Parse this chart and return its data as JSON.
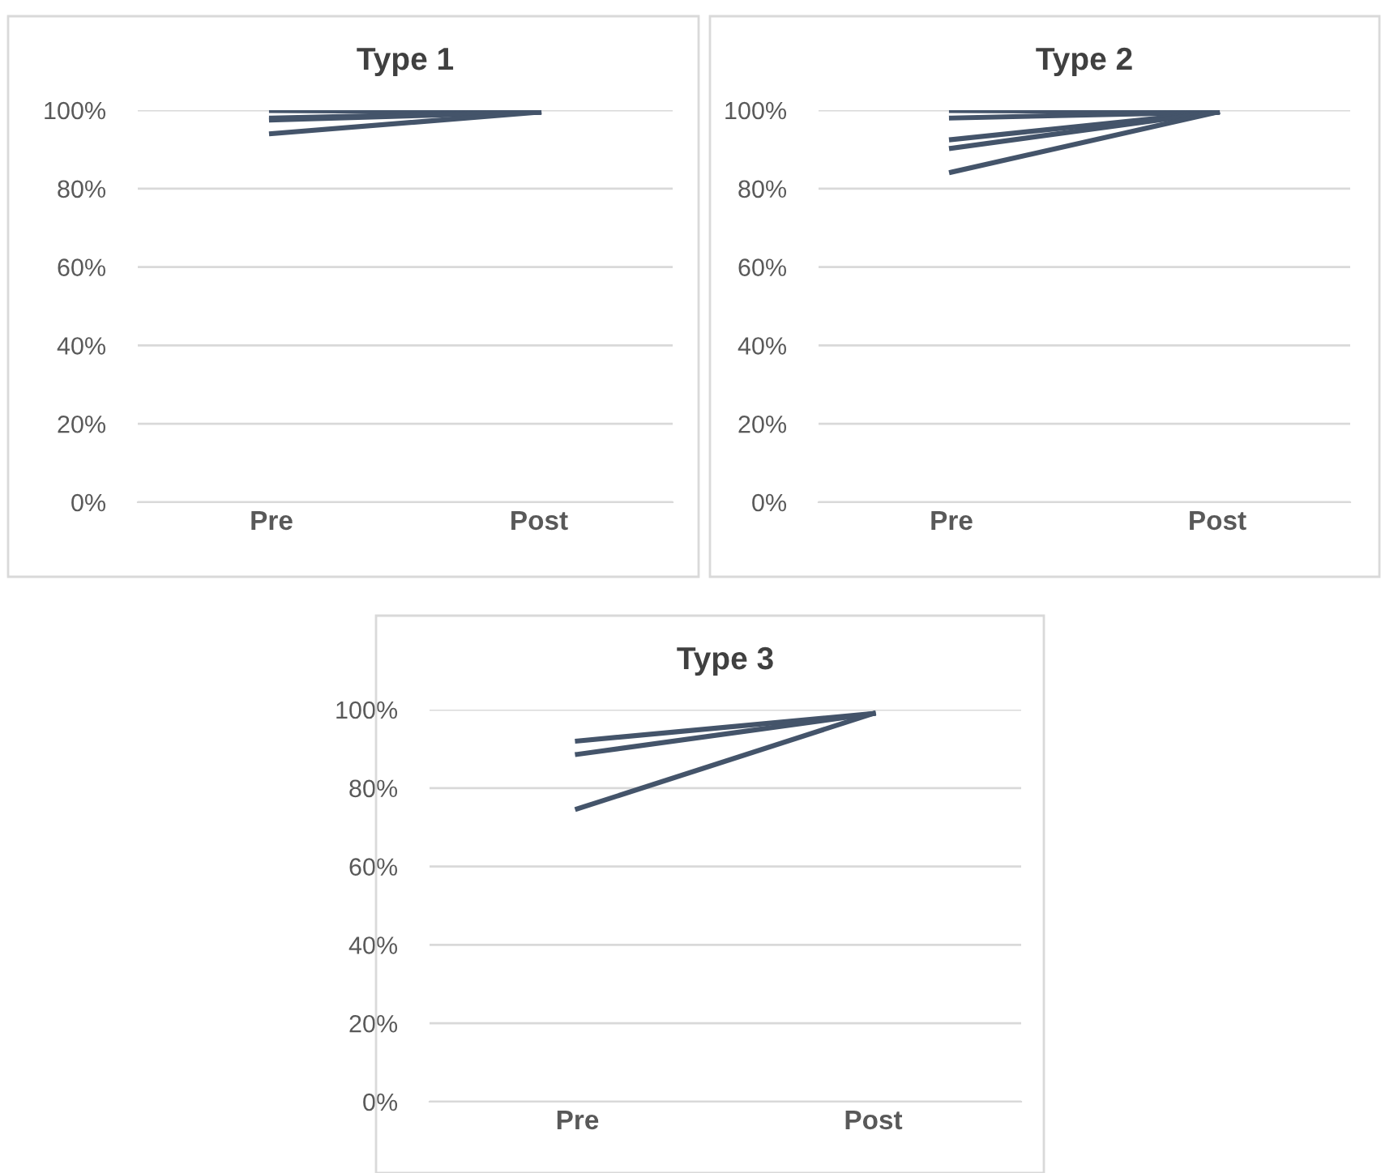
{
  "chart_data": [
    {
      "type": "line",
      "title": "Type 1",
      "categories": [
        "Pre",
        "Post"
      ],
      "ylim": [
        0,
        100
      ],
      "yticks": [
        {
          "value": 0,
          "label": "0%"
        },
        {
          "value": 20,
          "label": "20%"
        },
        {
          "value": 40,
          "label": "40%"
        },
        {
          "value": 60,
          "label": "60%"
        },
        {
          "value": 80,
          "label": "80%"
        },
        {
          "value": 100,
          "label": "100%"
        }
      ],
      "grid": "y",
      "legend": false,
      "marker": "none",
      "series": [
        {
          "color": "#44546a",
          "values": [
            99.9,
            99.5
          ]
        },
        {
          "color": "#44546a",
          "values": [
            98,
            99.5
          ]
        },
        {
          "color": "#44546a",
          "values": [
            97.5,
            99.5
          ]
        },
        {
          "color": "#44546a",
          "values": [
            94,
            99.5
          ]
        }
      ]
    },
    {
      "type": "line",
      "title": "Type 2",
      "categories": [
        "Pre",
        "Post"
      ],
      "ylim": [
        0,
        100
      ],
      "yticks": [
        {
          "value": 0,
          "label": "0%"
        },
        {
          "value": 20,
          "label": "20%"
        },
        {
          "value": 40,
          "label": "40%"
        },
        {
          "value": 60,
          "label": "60%"
        },
        {
          "value": 80,
          "label": "80%"
        },
        {
          "value": 100,
          "label": "100%"
        }
      ],
      "grid": "y",
      "legend": false,
      "marker": "none",
      "series": [
        {
          "color": "#44546a",
          "values": [
            99.9,
            99.5
          ]
        },
        {
          "color": "#44546a",
          "values": [
            98,
            99.5
          ]
        },
        {
          "color": "#44546a",
          "values": [
            92.5,
            99.5
          ]
        },
        {
          "color": "#44546a",
          "values": [
            90.3,
            99.5
          ]
        },
        {
          "color": "#44546a",
          "values": [
            84.2,
            99.5
          ]
        }
      ]
    },
    {
      "type": "line",
      "title": "Type 3",
      "categories": [
        "Pre",
        "Post"
      ],
      "ylim": [
        0,
        100
      ],
      "yticks": [
        {
          "value": 0,
          "label": "0%"
        },
        {
          "value": 20,
          "label": "20%"
        },
        {
          "value": 40,
          "label": "40%"
        },
        {
          "value": 60,
          "label": "60%"
        },
        {
          "value": 80,
          "label": "80%"
        },
        {
          "value": 100,
          "label": "100%"
        }
      ],
      "grid": "y",
      "legend": false,
      "marker": "none",
      "series": [
        {
          "color": "#44546a",
          "values": [
            92,
            99
          ]
        },
        {
          "color": "#44546a",
          "values": [
            88.6,
            99
          ]
        },
        {
          "color": "#44546a",
          "values": [
            74.7,
            99
          ]
        }
      ]
    }
  ]
}
